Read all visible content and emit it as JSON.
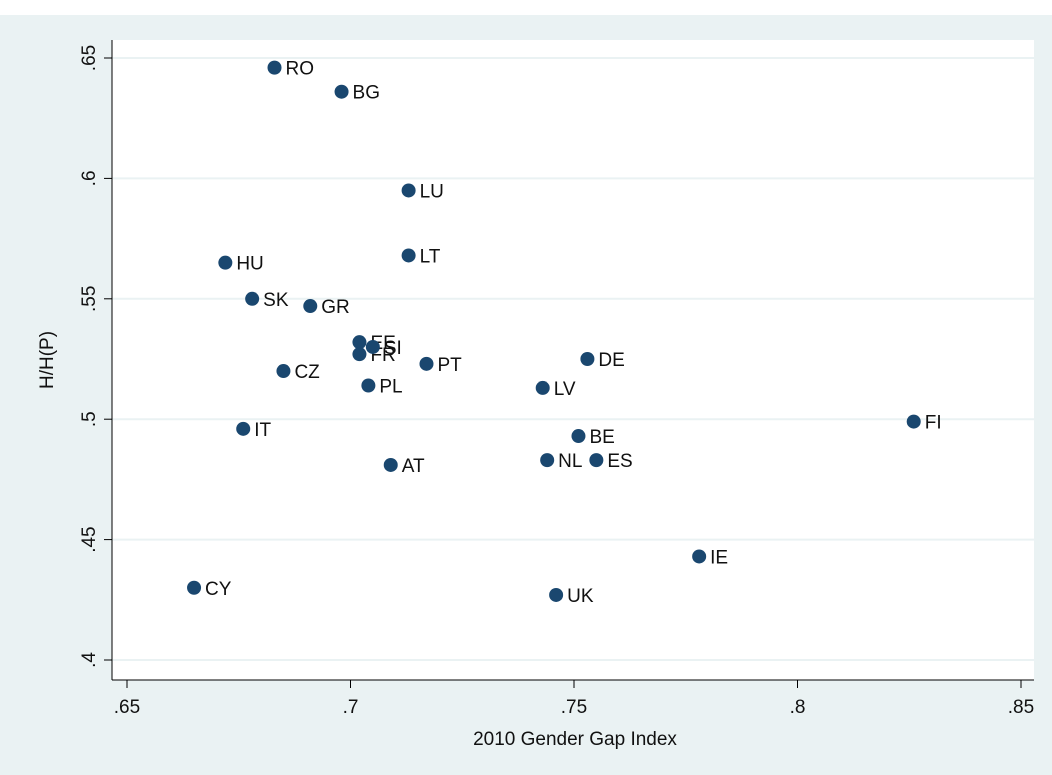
{
  "chart_data": {
    "type": "scatter",
    "xlabel": "2010 Gender Gap Index",
    "ylabel": "H/H(P)",
    "labels": [
      "RO",
      "BG",
      "LU",
      "LT",
      "HU",
      "SK",
      "GR",
      "EE",
      "FR",
      "SI",
      "PT",
      "DE",
      "CZ",
      "PL",
      "LV",
      "IT",
      "FI",
      "BE",
      "AT",
      "NL",
      "ES",
      "IE",
      "CY",
      "UK"
    ],
    "x": [
      0.683,
      0.698,
      0.713,
      0.713,
      0.672,
      0.678,
      0.691,
      0.702,
      0.702,
      0.705,
      0.717,
      0.753,
      0.685,
      0.704,
      0.743,
      0.676,
      0.826,
      0.751,
      0.709,
      0.744,
      0.755,
      0.778,
      0.665,
      0.746
    ],
    "values": [
      0.646,
      0.636,
      0.595,
      0.568,
      0.565,
      0.55,
      0.547,
      0.532,
      0.527,
      0.53,
      0.523,
      0.525,
      0.52,
      0.514,
      0.513,
      0.496,
      0.499,
      0.493,
      0.481,
      0.483,
      0.483,
      0.443,
      0.43,
      0.427
    ],
    "color": "#1a476f",
    "xlim": [
      0.65,
      0.85
    ],
    "ylim": [
      0.4,
      0.65
    ],
    "xticks": [
      {
        "value": 0.65,
        "label": ".65"
      },
      {
        "value": 0.7,
        "label": ".7"
      },
      {
        "value": 0.75,
        "label": ".75"
      },
      {
        "value": 0.8,
        "label": ".8"
      },
      {
        "value": 0.85,
        "label": ".85"
      }
    ],
    "yticks": [
      {
        "value": 0.4,
        "label": ".4"
      },
      {
        "value": 0.45,
        "label": ".45"
      },
      {
        "value": 0.5,
        "label": ".5"
      },
      {
        "value": 0.55,
        "label": ".55"
      },
      {
        "value": 0.6,
        "label": ".6"
      },
      {
        "value": 0.65,
        "label": ".65"
      }
    ],
    "grid": true
  }
}
